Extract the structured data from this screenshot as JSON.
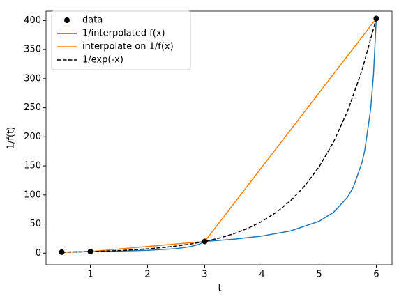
{
  "chart_data": {
    "type": "line",
    "xlabel": "t",
    "ylabel": "1/f(t)",
    "xlim": [
      0.225,
      6.275
    ],
    "ylim": [
      -20,
      416
    ],
    "xticks": [
      1,
      2,
      3,
      4,
      5,
      6
    ],
    "yticks": [
      0,
      50,
      100,
      150,
      200,
      250,
      300,
      350,
      400
    ],
    "legend": "upper left",
    "series": [
      {
        "name": "data",
        "kind": "scatter",
        "color": "#000000",
        "x": [
          0.5,
          1,
          3,
          6
        ],
        "values": [
          1.65,
          2.72,
          20.09,
          403.43
        ]
      },
      {
        "name": "1/interpolated f(x)",
        "kind": "line",
        "color": "#1f77b4",
        "linestyle": "solid",
        "x": [
          0.5,
          0.75,
          1,
          1.5,
          2,
          2.5,
          2.75,
          2.9,
          3,
          3.5,
          4,
          4.5,
          5,
          5.25,
          5.5,
          5.6,
          5.75,
          5.8,
          5.9,
          5.95,
          6
        ],
        "values": [
          1.65,
          2.05,
          2.72,
          3.47,
          4.79,
          7.73,
          11.17,
          15.22,
          20.09,
          23.86,
          29.4,
          38.26,
          54.8,
          69.9,
          96.5,
          113.8,
          155.7,
          177.5,
          246.5,
          306,
          403.43
        ]
      },
      {
        "name": "interpolate on 1/f(x)",
        "kind": "line",
        "color": "#ff7f0e",
        "linestyle": "solid",
        "x": [
          0.5,
          1,
          3,
          6
        ],
        "values": [
          1.65,
          2.72,
          20.09,
          403.43
        ]
      },
      {
        "name": "1/exp(-x)",
        "kind": "line",
        "color": "#000000",
        "linestyle": "dashed",
        "x": [
          0.5,
          0.75,
          1,
          1.25,
          1.5,
          1.75,
          2,
          2.25,
          2.5,
          2.75,
          3,
          3.25,
          3.5,
          3.75,
          4,
          4.25,
          4.5,
          4.75,
          5,
          5.25,
          5.5,
          5.75,
          6
        ],
        "values": [
          1.65,
          2.12,
          2.72,
          3.49,
          4.48,
          5.75,
          7.39,
          9.49,
          12.18,
          15.64,
          20.09,
          25.79,
          33.12,
          42.52,
          54.6,
          70.11,
          90.02,
          115.58,
          148.41,
          190.57,
          244.69,
          314.19,
          403.43
        ]
      }
    ]
  }
}
